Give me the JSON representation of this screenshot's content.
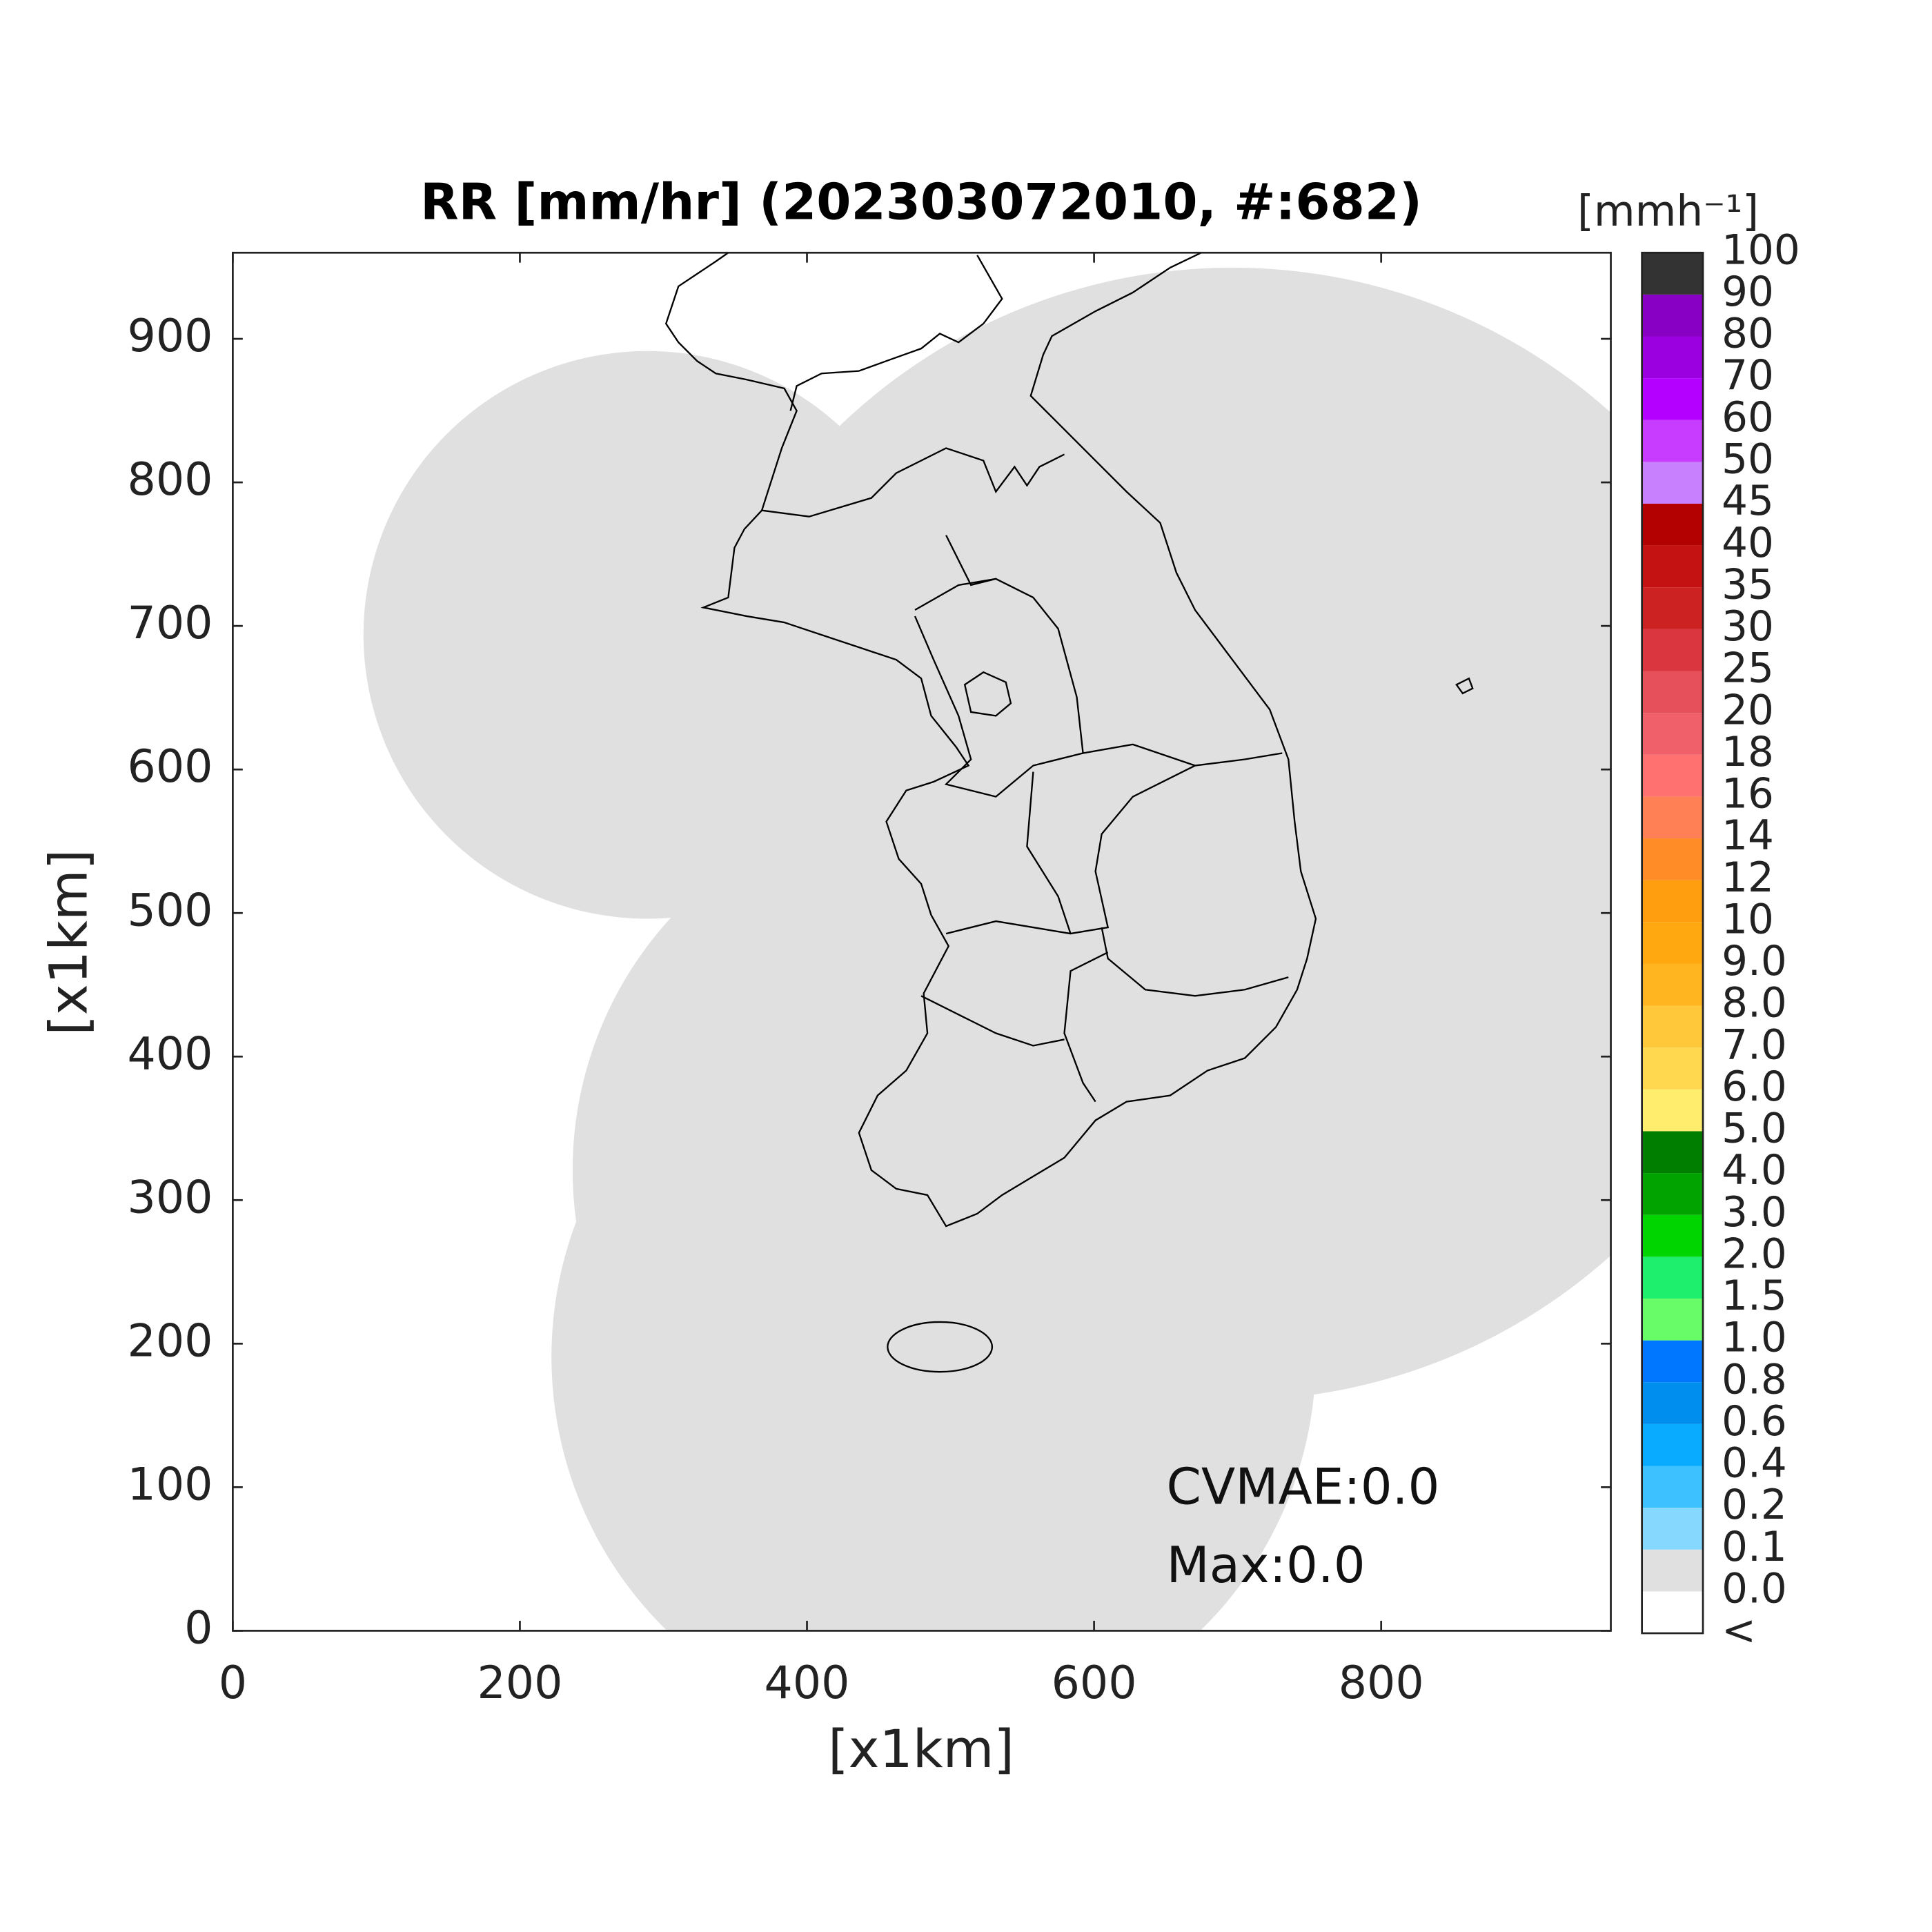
{
  "chart_data": {
    "type": "map",
    "title": "RR [mm/hr] (202303072010, #:682)",
    "xlabel": "[x1km]",
    "ylabel": "[x1km]",
    "xlim": [
      0,
      960
    ],
    "ylim": [
      0,
      960
    ],
    "xticks": [
      0,
      200,
      400,
      600,
      800
    ],
    "yticks": [
      0,
      100,
      200,
      300,
      400,
      500,
      600,
      700,
      800,
      900
    ],
    "annotations": [
      "CVMAE:0.0",
      "Max:0.0"
    ],
    "colorbar": {
      "title": "[mmh⁻¹]",
      "labels": [
        "<",
        "0.0",
        "0.1",
        "0.2",
        "0.4",
        "0.6",
        "0.8",
        "1.0",
        "1.5",
        "2.0",
        "3.0",
        "4.0",
        "5.0",
        "6.0",
        "7.0",
        "8.0",
        "9.0",
        "10",
        "12",
        "14",
        "16",
        "18",
        "20",
        "25",
        "30",
        "35",
        "40",
        "45",
        "50",
        "60",
        "70",
        "80",
        "90",
        "100"
      ],
      "colors": [
        "#ffffff",
        "#e0e0e0",
        "#87d8ff",
        "#3ec1ff",
        "#08abff",
        "#008eee",
        "#0077ff",
        "#69fc69",
        "#1ef06e",
        "#00d500",
        "#00a300",
        "#007e00",
        "#ffee6e",
        "#ffd850",
        "#ffc83a",
        "#ffb520",
        "#ffa80f",
        "#ff9f0f",
        "#ff8c26",
        "#ff8055",
        "#ff7070",
        "#f0606a",
        "#e6505a",
        "#d93640",
        "#cc2222",
        "#c41212",
        "#b30000",
        "#c880ff",
        "#c83cff",
        "#b300ff",
        "#9b00e0",
        "#8800c4",
        "#333333"
      ]
    }
  }
}
